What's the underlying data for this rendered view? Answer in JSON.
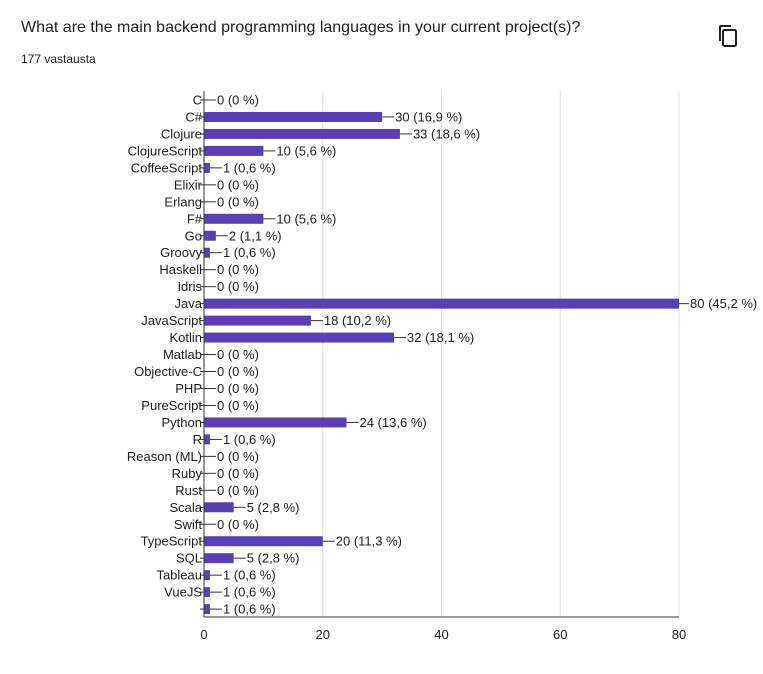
{
  "question": {
    "title": "What are the main backend programming languages in your current project(s)?",
    "responses": "177 vastausta",
    "copy_icon": "copy-icon"
  },
  "colors": {
    "bar": "#5b3fb5",
    "grid": "#e0e0e0",
    "axis": "#333333",
    "text": "#202124"
  },
  "chart_data": {
    "type": "bar",
    "orientation": "horizontal",
    "title": "",
    "xlabel": "",
    "ylabel": "",
    "xlim": [
      0,
      80
    ],
    "xticks": [
      "0",
      "20",
      "40",
      "60",
      "80"
    ],
    "grid": true,
    "categories": [
      "C",
      "C#",
      "Clojure",
      "ClojureScript",
      "CoffeeScript",
      "Elixir",
      "Erlang",
      "F#",
      "Go",
      "Groovy",
      "Haskell",
      "Idris",
      "Java",
      "JavaScript",
      "Kotlin",
      "Matlab",
      "Objective-C",
      "PHP",
      "PureScript",
      "Python",
      "R",
      "Reason (ML)",
      "Ruby",
      "Rust",
      "Scala",
      "Swift",
      "TypeScript",
      "SQL",
      "Tableau",
      "VueJS",
      ""
    ],
    "values": [
      0,
      30,
      33,
      10,
      1,
      0,
      0,
      10,
      2,
      1,
      0,
      0,
      80,
      18,
      32,
      0,
      0,
      0,
      0,
      24,
      1,
      0,
      0,
      0,
      5,
      0,
      20,
      5,
      1,
      1,
      1
    ],
    "data_labels": [
      "0 (0 %)",
      "30 (16,9 %)",
      "33 (18,6 %)",
      "10 (5,6 %)",
      "1 (0,6 %)",
      "0 (0 %)",
      "0 (0 %)",
      "10 (5,6 %)",
      "2 (1,1 %)",
      "1 (0,6 %)",
      "0 (0 %)",
      "0 (0 %)",
      "80 (45,2 %)",
      "18 (10,2 %)",
      "32 (18,1 %)",
      "0 (0 %)",
      "0 (0 %)",
      "0 (0 %)",
      "0 (0 %)",
      "24 (13,6 %)",
      "1 (0,6 %)",
      "0 (0 %)",
      "0 (0 %)",
      "0 (0 %)",
      "5 (2,8 %)",
      "0 (0 %)",
      "20 (11,3 %)",
      "5 (2,8 %)",
      "1 (0,6 %)",
      "1 (0,6 %)",
      "1 (0,6 %)"
    ]
  }
}
